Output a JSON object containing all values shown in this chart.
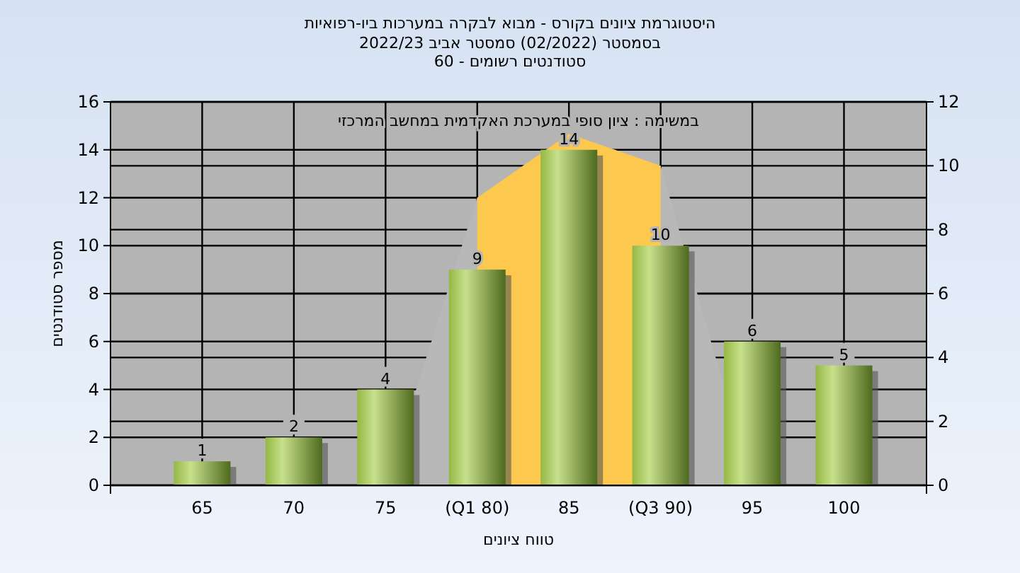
{
  "chart_data": {
    "type": "bar",
    "title": "היסטוגרמת ציונים בקורס - מבוא לבקרה במערכות ביו-רפואיות",
    "subtitle": "בסמסטר  (02/2022)  סמסטר אביב 2022/23\nסטודנטים רשומים - 60",
    "annotations": [
      "במשימה : ציון סופי במערכת האקדמית במחשב המרכזי"
    ],
    "xlabel": "טווח ציונים",
    "ylabel": "מספר סטודנטים",
    "categories": [
      "65",
      "70",
      "75",
      "(Q1 80)",
      "85",
      "(Q3 90)",
      "95",
      "100"
    ],
    "series": [
      {
        "type": "area",
        "axis": "y2",
        "color": "#b8b8b8",
        "values": [
          null,
          null,
          0,
          9,
          11,
          10,
          0,
          null
        ]
      },
      {
        "type": "area",
        "axis": "y2",
        "color": "#fcc84e",
        "values": [
          null,
          null,
          null,
          9,
          11,
          10,
          null,
          null
        ]
      },
      {
        "color": "#94b844",
        "values": [
          1,
          2,
          4,
          9,
          14,
          10,
          6,
          5
        ],
        "value_labels": [
          "1",
          "2",
          "4",
          "9",
          "14",
          "10",
          "6",
          "5"
        ]
      }
    ],
    "ylim": [
      0,
      16
    ],
    "yticks": [
      0,
      2,
      4,
      6,
      8,
      10,
      12,
      14,
      16
    ],
    "y2lim": [
      0,
      12
    ],
    "y2ticks": [
      0,
      2,
      4,
      6,
      8,
      10,
      12
    ],
    "grid": true
  }
}
